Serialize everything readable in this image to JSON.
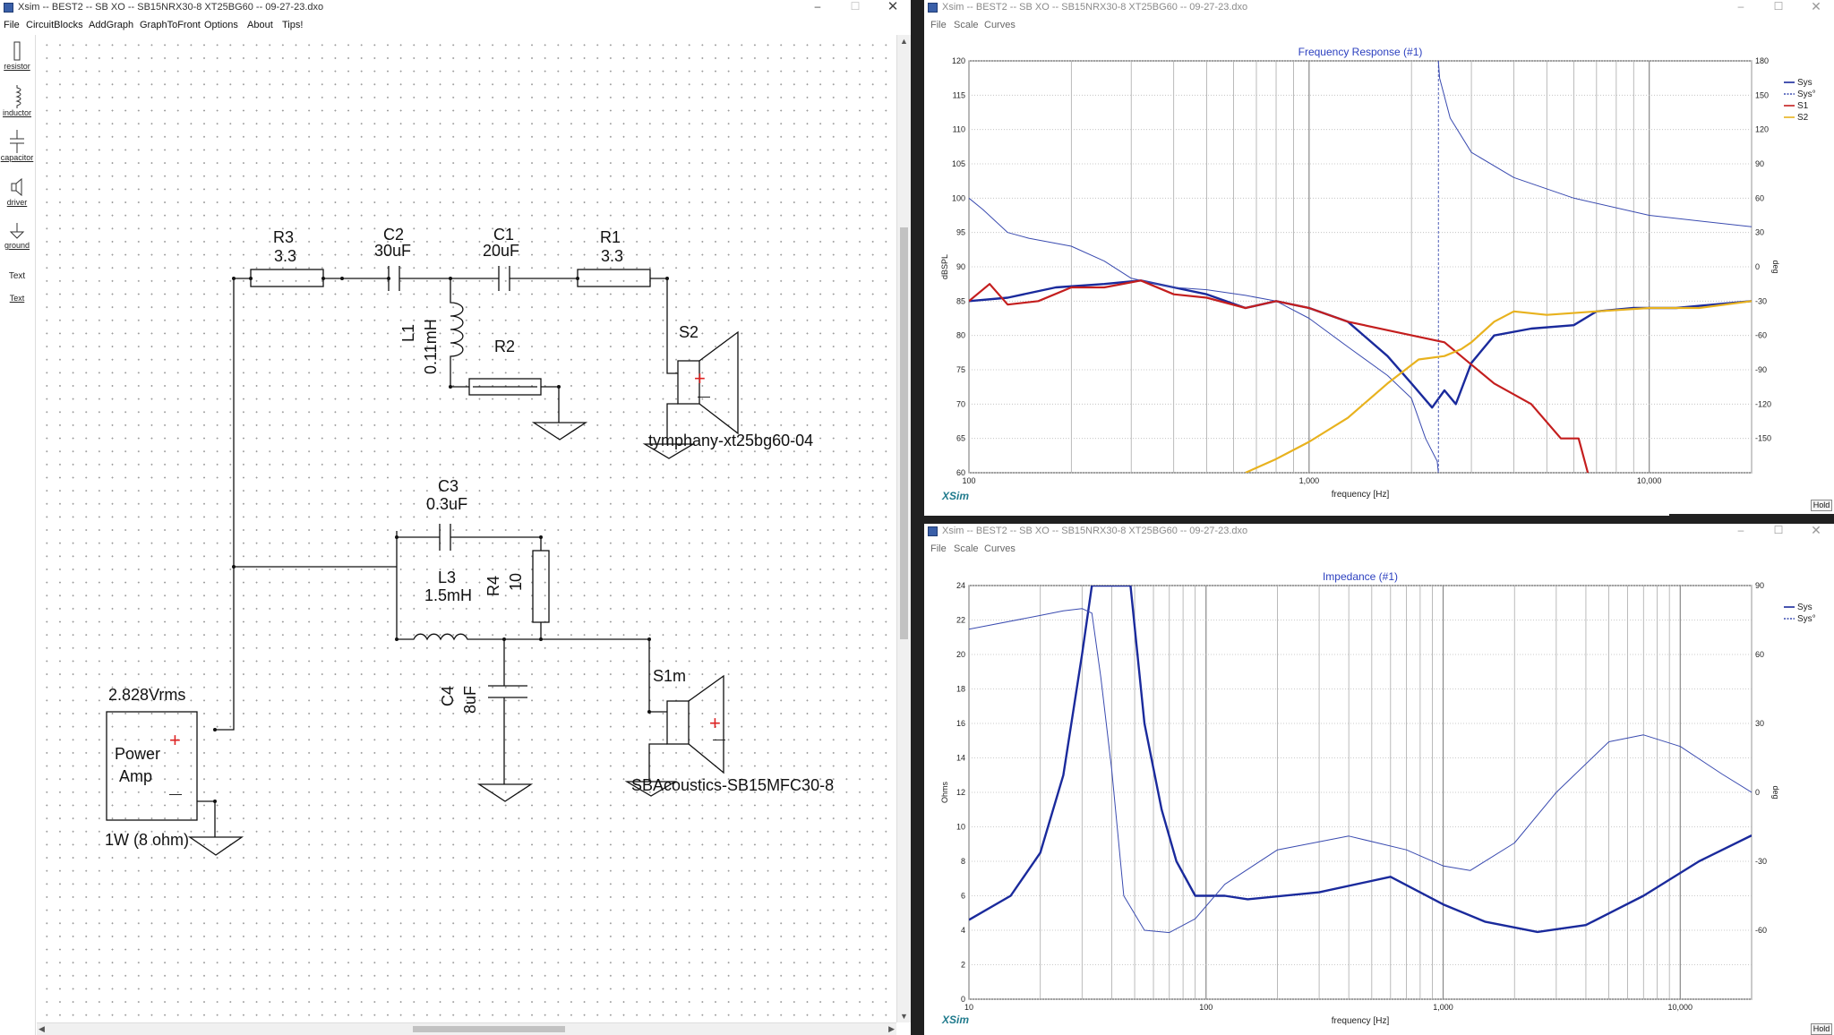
{
  "schematic_window": {
    "title": "Xsim -- BEST2 -- SB XO -- SB15NRX30-8 XT25BG60 -- 09-27-23.dxo",
    "menu": [
      "File",
      "CircuitBlocks",
      "AddGraph",
      "GraphToFront",
      "Options",
      "About",
      "Tips!"
    ],
    "toolbar": [
      {
        "label": "resistor",
        "icon": "resistor-icon"
      },
      {
        "label": "inductor",
        "icon": "inductor-icon"
      },
      {
        "label": "capacitor",
        "icon": "capacitor-icon"
      },
      {
        "label": "driver",
        "icon": "driver-icon"
      },
      {
        "label": "ground",
        "icon": "ground-icon"
      },
      {
        "label": "Text",
        "icon": "text-icon"
      },
      {
        "label": "Text",
        "icon": "text-link"
      }
    ],
    "components": {
      "R3": {
        "name": "R3",
        "value": "3.3"
      },
      "C2": {
        "name": "C2",
        "value": "30uF"
      },
      "C1": {
        "name": "C1",
        "value": "20uF"
      },
      "R1": {
        "name": "R1",
        "value": "3.3"
      },
      "L1": {
        "name": "L1",
        "value": "0.11mH"
      },
      "R2": {
        "name": "R2"
      },
      "S2": {
        "name": "S2",
        "model": "tymphany-xt25bg60-04"
      },
      "C3": {
        "name": "C3",
        "value": "0.3uF"
      },
      "L3": {
        "name": "L3",
        "value": "1.5mH"
      },
      "R4": {
        "name": "R4",
        "value": "10"
      },
      "C4": {
        "name": "C4",
        "value": "8uF"
      },
      "S1m": {
        "name": "S1m",
        "model": "SBAcoustics-SB15MFC30-8"
      },
      "amp": {
        "voltage": "2.828Vrms",
        "label1": "Power",
        "label2": "Amp",
        "power": "1W (8 ohm)"
      }
    },
    "plus": "+",
    "minus": "—"
  },
  "graph1": {
    "title_bar": "Xsim -- BEST2 -- SB XO -- SB15NRX30-8 XT25BG60 -- 09-27-23.dxo",
    "menu": [
      "File",
      "Scale",
      "Curves"
    ],
    "title": "Frequency Response (#1)",
    "ylabel_left": "dBSPL",
    "ylabel_right": "deg",
    "xlabel": "frequency [Hz]",
    "left_ticks": [
      "120",
      "115",
      "110",
      "105",
      "100",
      "95",
      "90",
      "85",
      "80",
      "75",
      "70",
      "65",
      "60"
    ],
    "right_ticks": [
      "180",
      "150",
      "120",
      "90",
      "60",
      "30",
      "0",
      "-30",
      "-60",
      "-90",
      "-120",
      "-150"
    ],
    "x_ticks": [
      "100",
      "1,000",
      "10,000"
    ],
    "legend": [
      "Sys",
      "Sys°",
      "S1",
      "S2"
    ],
    "logo": "XSim",
    "hold": "Hold"
  },
  "graph2": {
    "title_bar": "Xsim -- BEST2 -- SB XO -- SB15NRX30-8 XT25BG60 -- 09-27-23.dxo",
    "menu": [
      "File",
      "Scale",
      "Curves"
    ],
    "title": "Impedance (#1)",
    "ylabel_left": "Ohms",
    "ylabel_right": "deg",
    "xlabel": "frequency [Hz]",
    "left_ticks": [
      "24",
      "22",
      "20",
      "18",
      "16",
      "14",
      "12",
      "10",
      "8",
      "6",
      "4",
      "2",
      "0"
    ],
    "right_ticks": [
      "90",
      "60",
      "30",
      "0",
      "-30",
      "-60"
    ],
    "x_ticks": [
      "10",
      "100",
      "1,000",
      "10,000"
    ],
    "legend": [
      "Sys",
      "Sys°"
    ],
    "logo": "XSim",
    "hold": "Hold"
  },
  "colors": {
    "sys": "#1a2a9c",
    "sys_phase": "#3a4bb0",
    "s1": "#c41e1e",
    "s2": "#e8b21e",
    "title_blue": "#2b3fbf",
    "plus_red": "#d22"
  },
  "chart_data": [
    {
      "type": "line",
      "title": "Frequency Response (#1)",
      "xlabel": "frequency [Hz]",
      "ylabel": "dBSPL",
      "xscale": "log",
      "xlim": [
        100,
        20000
      ],
      "ylim": [
        60,
        120
      ],
      "y2lim": [
        -180,
        180
      ],
      "y2label": "deg",
      "grid": true,
      "legend_position": "top-right",
      "series": [
        {
          "name": "Sys",
          "axis": "left",
          "points": [
            [
              100,
              85
            ],
            [
              130,
              85.5
            ],
            [
              180,
              87
            ],
            [
              250,
              87.5
            ],
            [
              320,
              88
            ],
            [
              400,
              87
            ],
            [
              500,
              86
            ],
            [
              650,
              84
            ],
            [
              800,
              85
            ],
            [
              1000,
              84
            ],
            [
              1300,
              82
            ],
            [
              1700,
              77
            ],
            [
              2000,
              73
            ],
            [
              2300,
              69.5
            ],
            [
              2500,
              72
            ],
            [
              2700,
              70
            ],
            [
              3000,
              76
            ],
            [
              3500,
              80
            ],
            [
              4500,
              81
            ],
            [
              6000,
              81.5
            ],
            [
              7000,
              83.5
            ],
            [
              9000,
              84
            ],
            [
              12000,
              84
            ],
            [
              20000,
              85
            ]
          ]
        },
        {
          "name": "Sys°",
          "axis": "right",
          "points": [
            [
              100,
              60
            ],
            [
              110,
              50
            ],
            [
              130,
              30
            ],
            [
              150,
              25
            ],
            [
              200,
              18
            ],
            [
              250,
              5
            ],
            [
              300,
              -10
            ],
            [
              400,
              -18
            ],
            [
              500,
              -20
            ],
            [
              650,
              -25
            ],
            [
              800,
              -30
            ],
            [
              1000,
              -45
            ],
            [
              1300,
              -70
            ],
            [
              1700,
              -95
            ],
            [
              2000,
              -115
            ],
            [
              2200,
              -150
            ],
            [
              2380,
              -170
            ],
            [
              2420,
              165
            ],
            [
              2600,
              130
            ],
            [
              3000,
              100
            ],
            [
              4000,
              78
            ],
            [
              6000,
              60
            ],
            [
              10000,
              45
            ],
            [
              20000,
              35
            ]
          ]
        },
        {
          "name": "S1",
          "axis": "left",
          "points": [
            [
              100,
              85
            ],
            [
              115,
              87.5
            ],
            [
              130,
              84.5
            ],
            [
              160,
              85
            ],
            [
              200,
              87
            ],
            [
              250,
              87
            ],
            [
              320,
              88
            ],
            [
              400,
              86
            ],
            [
              500,
              85.5
            ],
            [
              650,
              84
            ],
            [
              800,
              85
            ],
            [
              1000,
              84
            ],
            [
              1300,
              82
            ],
            [
              1800,
              80.5
            ],
            [
              2500,
              79
            ],
            [
              3500,
              73
            ],
            [
              4500,
              70
            ],
            [
              5500,
              65
            ],
            [
              6200,
              65
            ],
            [
              6600,
              60
            ]
          ]
        },
        {
          "name": "S2",
          "axis": "left",
          "points": [
            [
              650,
              60
            ],
            [
              800,
              62
            ],
            [
              1000,
              64.5
            ],
            [
              1300,
              68
            ],
            [
              1700,
              73
            ],
            [
              2100,
              76.5
            ],
            [
              2500,
              77
            ],
            [
              2800,
              78
            ],
            [
              3000,
              79
            ],
            [
              3500,
              82
            ],
            [
              4000,
              83.5
            ],
            [
              5000,
              83
            ],
            [
              7000,
              83.5
            ],
            [
              10000,
              84
            ],
            [
              14000,
              84
            ],
            [
              20000,
              85
            ]
          ]
        }
      ]
    },
    {
      "type": "line",
      "title": "Impedance (#1)",
      "xlabel": "frequency [Hz]",
      "ylabel": "Ohms",
      "xscale": "log",
      "xlim": [
        10,
        20000
      ],
      "ylim": [
        0,
        24
      ],
      "y2lim": [
        -90,
        90
      ],
      "y2label": "deg",
      "grid": true,
      "legend_position": "top-right",
      "series": [
        {
          "name": "Sys",
          "axis": "left",
          "points": [
            [
              10,
              4.6
            ],
            [
              15,
              6
            ],
            [
              20,
              8.5
            ],
            [
              25,
              13
            ],
            [
              30,
              20
            ],
            [
              33,
              24
            ],
            [
              48,
              24
            ],
            [
              55,
              16
            ],
            [
              65,
              11
            ],
            [
              75,
              8
            ],
            [
              90,
              6
            ],
            [
              120,
              6
            ],
            [
              150,
              5.8
            ],
            [
              300,
              6.2
            ],
            [
              600,
              7.1
            ],
            [
              1000,
              5.5
            ],
            [
              1500,
              4.5
            ],
            [
              2500,
              3.9
            ],
            [
              4000,
              4.3
            ],
            [
              7000,
              6
            ],
            [
              12000,
              8
            ],
            [
              20000,
              9.5
            ]
          ]
        },
        {
          "name": "Sys°",
          "axis": "right",
          "points": [
            [
              10,
              71
            ],
            [
              20,
              77
            ],
            [
              25,
              79
            ],
            [
              30,
              80
            ],
            [
              33,
              78
            ],
            [
              36,
              50
            ],
            [
              40,
              10
            ],
            [
              45,
              -45
            ],
            [
              55,
              -60
            ],
            [
              70,
              -61
            ],
            [
              90,
              -55
            ],
            [
              120,
              -40
            ],
            [
              200,
              -25
            ],
            [
              400,
              -19
            ],
            [
              700,
              -25
            ],
            [
              1000,
              -32
            ],
            [
              1300,
              -34
            ],
            [
              2000,
              -22
            ],
            [
              3000,
              0
            ],
            [
              5000,
              22
            ],
            [
              7000,
              25
            ],
            [
              10000,
              20
            ],
            [
              15000,
              8
            ],
            [
              20000,
              0
            ]
          ]
        }
      ]
    }
  ]
}
